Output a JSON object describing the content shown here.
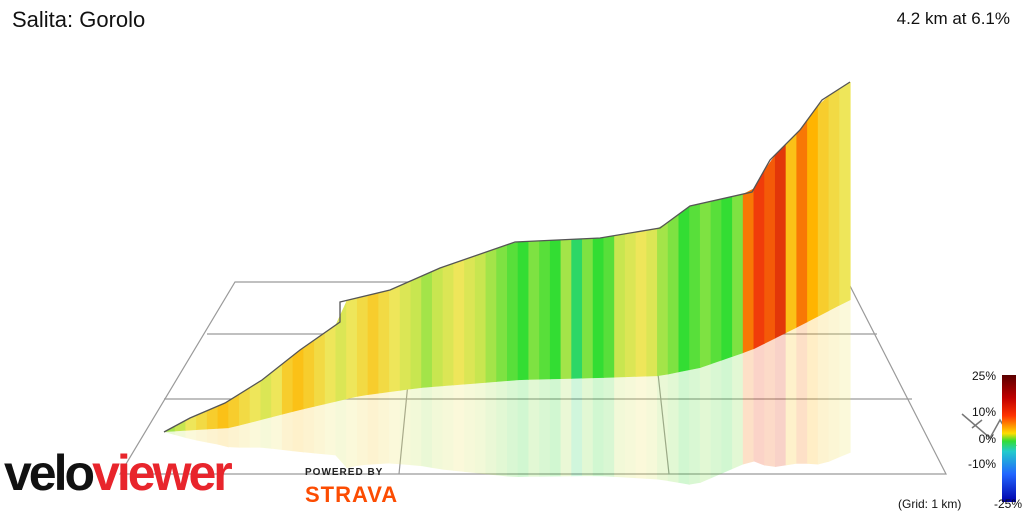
{
  "header": {
    "title": "Salita: Gorolo",
    "stats": "4.2 km at 6.1%"
  },
  "legend": {
    "labels": [
      "25%",
      "10%",
      "0%",
      "-10%",
      "-25%"
    ],
    "grid_note": "(Grid: 1 km)"
  },
  "branding": {
    "logo_part1": "velo",
    "logo_part2": "viewer",
    "powered_by": "POWERED BY",
    "strava": "STRAVA"
  },
  "colors": {
    "logo_red": "#e8252c",
    "strava_orange": "#fc4c02"
  },
  "profile": {
    "segment_gradients_percent": [
      3,
      4,
      6,
      7,
      8,
      9,
      8,
      7,
      6,
      5,
      6,
      8,
      9,
      8,
      7,
      6,
      5,
      6,
      7,
      8,
      7,
      6,
      5,
      4,
      3,
      4,
      5,
      6,
      5,
      4,
      3,
      2,
      1,
      0,
      2,
      1,
      0,
      3,
      -1,
      2,
      0,
      1,
      4,
      5,
      6,
      5,
      3,
      2,
      0,
      1,
      2,
      1,
      0,
      2,
      12,
      14,
      13,
      15,
      9,
      12,
      10,
      8,
      7,
      6
    ]
  }
}
